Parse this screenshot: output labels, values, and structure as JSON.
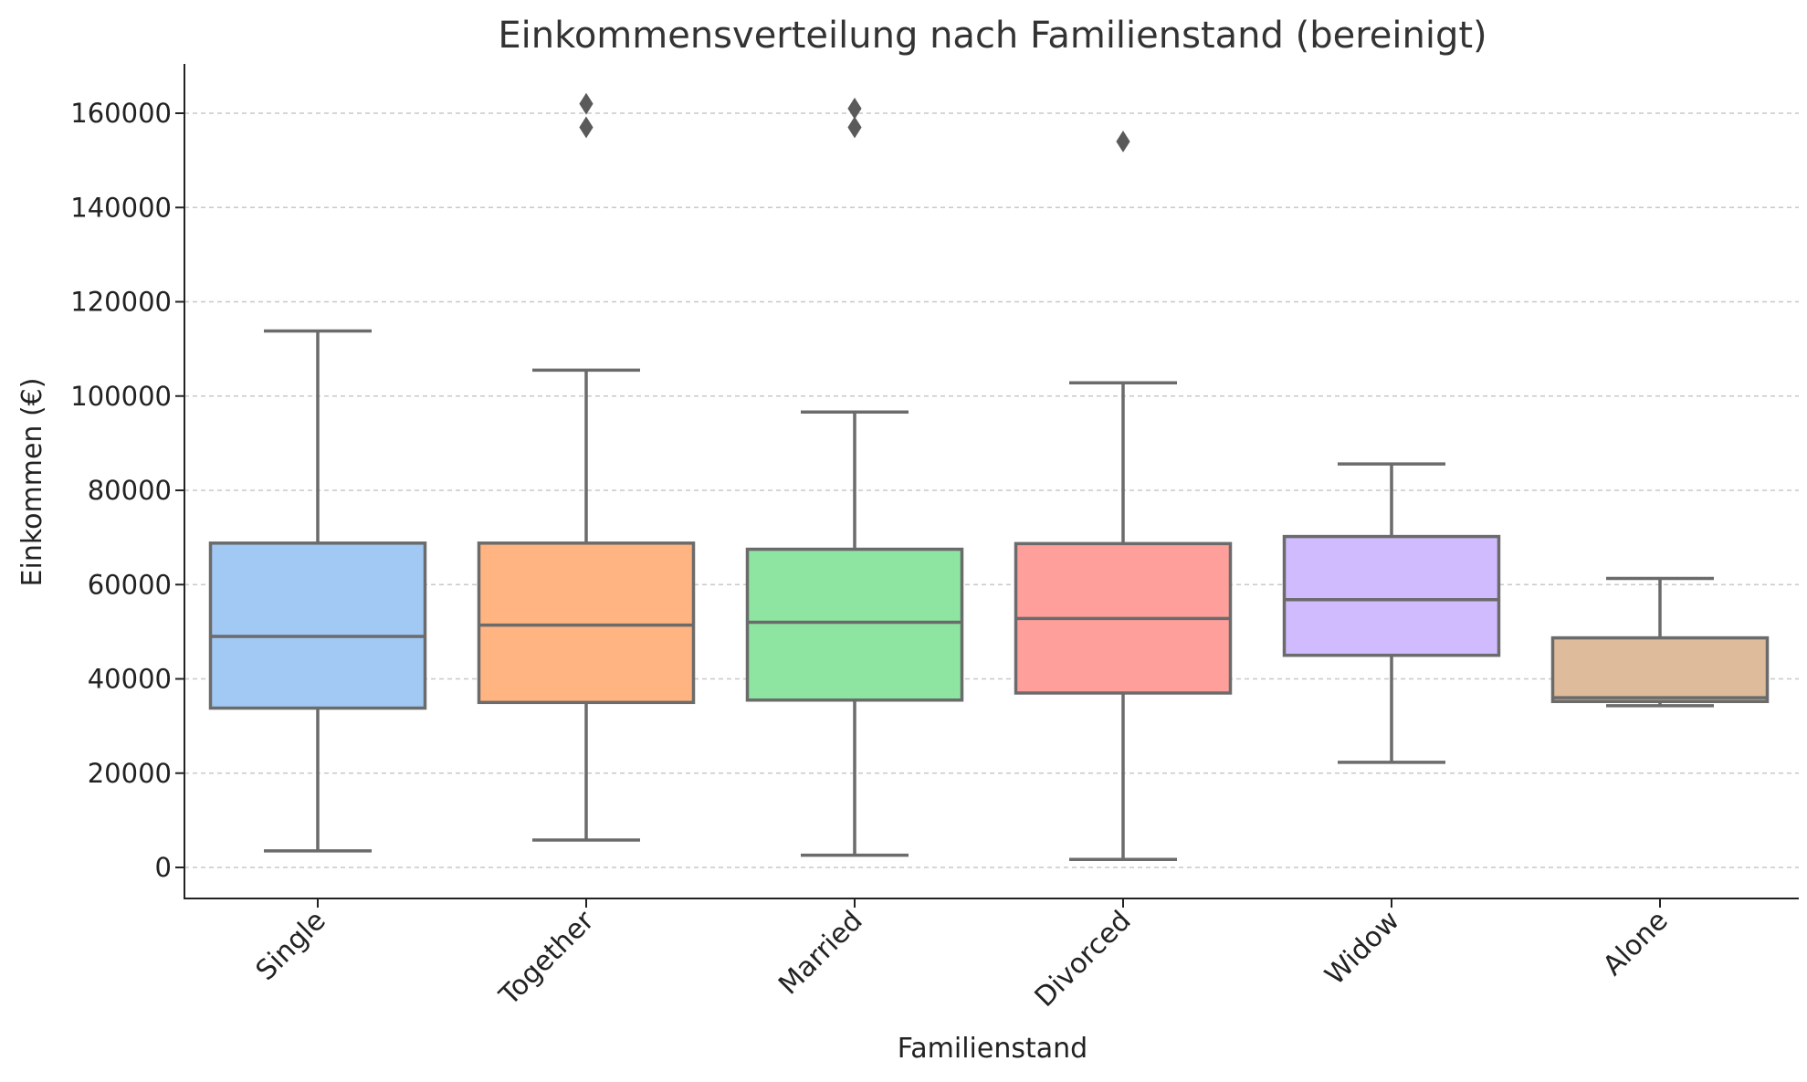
{
  "chart_data": {
    "type": "box",
    "title": "Einkommensverteilung nach Familienstand (bereinigt)",
    "xlabel": "Familienstand",
    "ylabel": "Einkommen (€)",
    "ylim": [
      -6000,
      170000
    ],
    "yticks": [
      0,
      20000,
      40000,
      60000,
      80000,
      100000,
      120000,
      140000,
      160000
    ],
    "ytick_labels": [
      "0",
      "20000",
      "40000",
      "60000",
      "80000",
      "100000",
      "120000",
      "140000",
      "160000"
    ],
    "grid": "horizontal dashed",
    "categories": [
      "Single",
      "Together",
      "Married",
      "Divorced",
      "Widow",
      "Alone"
    ],
    "box_colors": [
      "#a1c9f4",
      "#ffb482",
      "#8de5a1",
      "#ff9f9b",
      "#d0bbff",
      "#debb9b"
    ],
    "edge_color": "#6b6b6b",
    "boxes": [
      {
        "whisker_low": 3500,
        "q1": 33800,
        "median": 49000,
        "q3": 68800,
        "whisker_high": 113800,
        "outliers": []
      },
      {
        "whisker_low": 5800,
        "q1": 35000,
        "median": 51400,
        "q3": 68800,
        "whisker_high": 105500,
        "outliers": [
          157000,
          162000
        ]
      },
      {
        "whisker_low": 2600,
        "q1": 35500,
        "median": 52000,
        "q3": 67500,
        "whisker_high": 96600,
        "outliers": [
          157000,
          161000
        ]
      },
      {
        "whisker_low": 1700,
        "q1": 37000,
        "median": 52800,
        "q3": 68700,
        "whisker_high": 102800,
        "outliers": [
          154000
        ]
      },
      {
        "whisker_low": 22300,
        "q1": 45000,
        "median": 56800,
        "q3": 70200,
        "whisker_high": 85600,
        "outliers": []
      },
      {
        "whisker_low": 34300,
        "q1": 35200,
        "median": 36000,
        "q3": 48700,
        "whisker_high": 61300,
        "outliers": []
      }
    ]
  }
}
